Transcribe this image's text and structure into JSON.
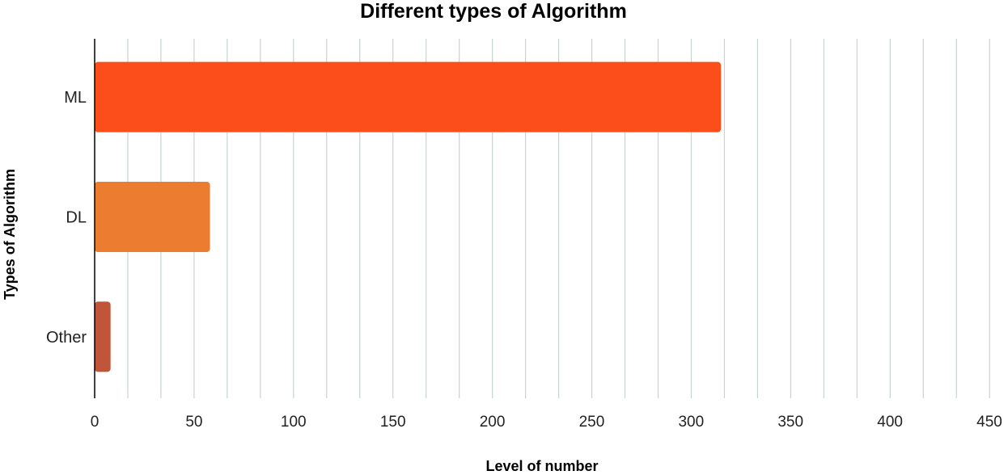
{
  "chart_data": {
    "type": "bar",
    "orientation": "horizontal",
    "title": "Different types of Algorithm",
    "xlabel": "Level of number",
    "ylabel": "Types of Algorithm",
    "categories": [
      "ML",
      "DL",
      "Other"
    ],
    "values": [
      315,
      58,
      8
    ],
    "colors": [
      "#fc4e1a",
      "#ec7d30",
      "#c0553a"
    ],
    "xlim": [
      0,
      450
    ],
    "xticks": [
      0,
      50,
      100,
      150,
      200,
      250,
      300,
      350,
      400,
      450
    ],
    "minor_step": 16.67,
    "grid": true,
    "legend": "none"
  }
}
